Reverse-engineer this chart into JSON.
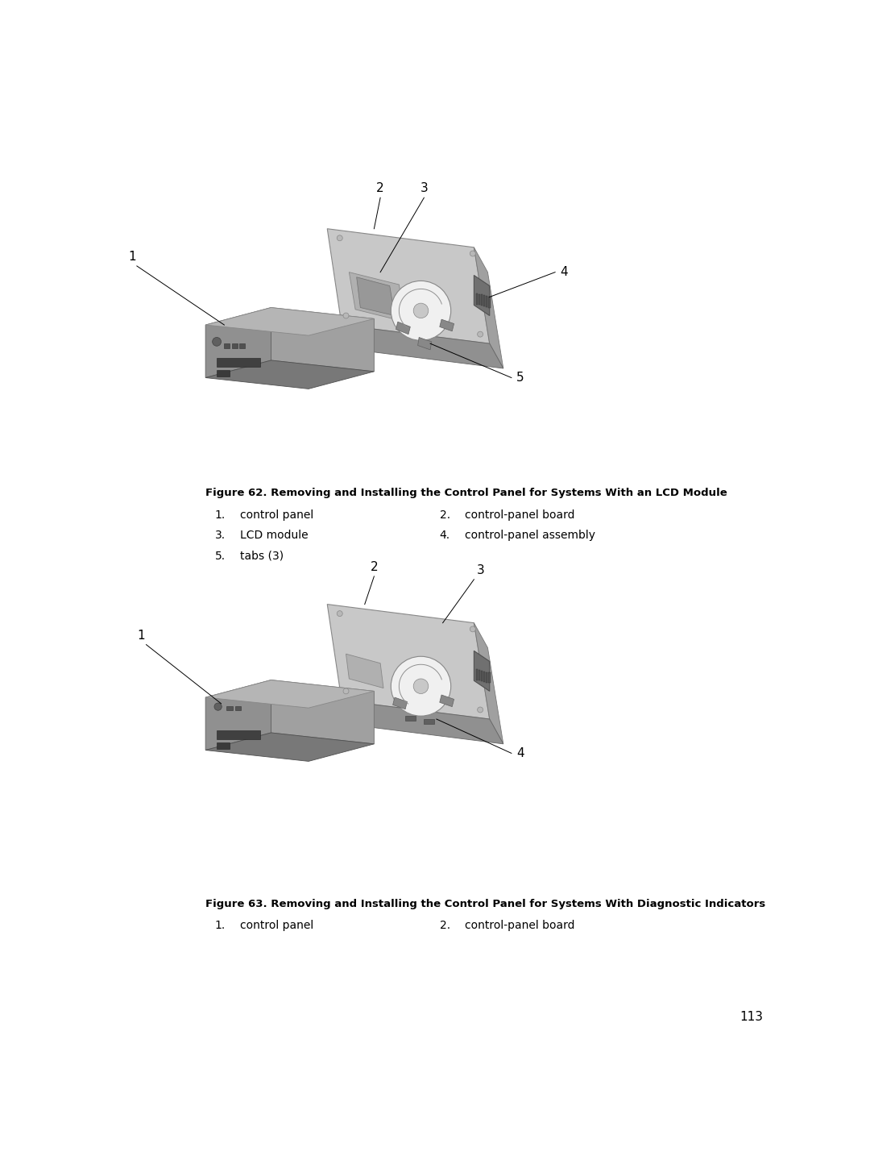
{
  "background_color": "#ffffff",
  "page_number": "113",
  "fig62_title": "Figure 62. Removing and Installing the Control Panel for Systems With an LCD Module",
  "fig62_items": [
    [
      "1.",
      "control panel",
      "2.",
      "control-panel board"
    ],
    [
      "3.",
      "LCD module",
      "4.",
      "control-panel assembly"
    ],
    [
      "5.",
      "tabs (3)",
      "",
      ""
    ]
  ],
  "fig63_title": "Figure 63. Removing and Installing the Control Panel for Systems With Diagnostic Indicators",
  "fig63_items": [
    [
      "1.",
      "control panel",
      "2.",
      "control-panel board"
    ]
  ],
  "callout_color": "#000000",
  "arrow_color": "#1a6bb5",
  "label_fontsize": 11,
  "caption_fontsize": 9.5,
  "item_fontsize": 10
}
